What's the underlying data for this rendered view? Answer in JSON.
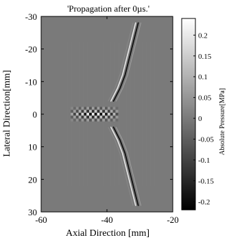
{
  "chart_data": {
    "type": "heatmap",
    "title": "'Propagation after 0µs.'",
    "xlabel": "Axial Direction [mm]",
    "ylabel": "Lateral Direction[mm]",
    "xlim": [
      -60,
      -20
    ],
    "ylim": [
      -30,
      30
    ],
    "y_axis_inverted": true,
    "xticks": [
      -60,
      -40,
      -20
    ],
    "xtick_labels": [
      "-60",
      "-40",
      "-20"
    ],
    "yticks": [
      -30,
      -20,
      -10,
      0,
      10,
      20,
      30
    ],
    "ytick_labels": [
      "-30",
      "-20",
      "-10",
      "0",
      "10",
      "20",
      "30"
    ],
    "colorbar": {
      "label": "Absolute Pressure[MPa]",
      "range": [
        -0.22,
        0.24
      ],
      "ticks": [
        0.2,
        0.15,
        0.1,
        0.05,
        0,
        -0.05,
        -0.1,
        -0.15,
        -0.2
      ],
      "tick_labels": [
        "0.2",
        "0.15",
        "0.1",
        "0.05",
        "0",
        "-0.05",
        "-0.1",
        "-0.15",
        "-0.2"
      ],
      "colormap": "gray",
      "min_color": "#000000",
      "max_color": "#ffffff"
    },
    "background_value": 0,
    "features": {
      "axial_oscillation": {
        "x_range": [
          -51,
          -37
        ],
        "y": 0,
        "wavelength_mm": 1.6,
        "amplitude": 0.2
      },
      "wavefront_upper": {
        "points": [
          [
            -38,
            -4
          ],
          [
            -36,
            -8
          ],
          [
            -34.5,
            -12
          ],
          [
            -33.5,
            -16
          ],
          [
            -32.5,
            -20
          ],
          [
            -31.5,
            -24
          ],
          [
            -30.5,
            -28
          ]
        ],
        "amplitude": 0.2
      },
      "wavefront_lower": {
        "points": [
          [
            -38,
            4
          ],
          [
            -36,
            8
          ],
          [
            -34.5,
            12
          ],
          [
            -33.5,
            16
          ],
          [
            -32.5,
            20
          ],
          [
            -31.5,
            24
          ],
          [
            -30.5,
            28
          ]
        ],
        "amplitude": 0.2
      }
    }
  }
}
